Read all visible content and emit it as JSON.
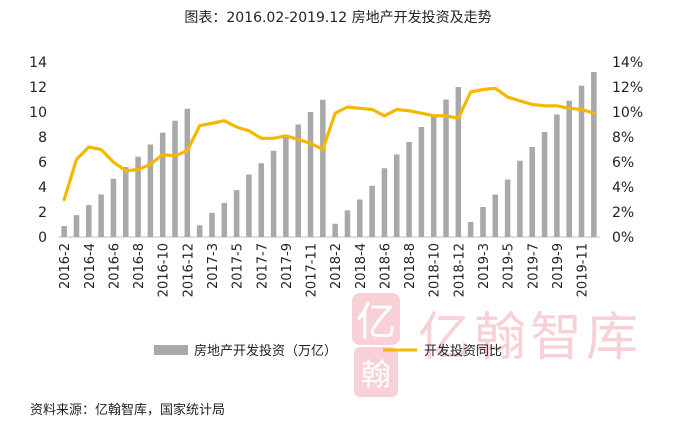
{
  "title": "图表：2016.02-2019.12 房地产开发投资及走势",
  "source": "资料来源：亿翰智库，国家统计局",
  "watermark": "亿翰智库",
  "colors": {
    "bar": "#a9a9a9",
    "line": "#f5b800",
    "watermark": "#f6c9cf"
  },
  "chart_data": {
    "type": "bar+line",
    "categories": [
      "2016-2",
      "2016-3",
      "2016-4",
      "2016-5",
      "2016-6",
      "2016-7",
      "2016-8",
      "2016-9",
      "2016-10",
      "2016-11",
      "2016-12",
      "2017-2",
      "2017-3",
      "2017-4",
      "2017-5",
      "2017-6",
      "2017-7",
      "2017-8",
      "2017-9",
      "2017-10",
      "2017-11",
      "2017-12",
      "2018-2",
      "2018-3",
      "2018-4",
      "2018-5",
      "2018-6",
      "2018-7",
      "2018-8",
      "2018-9",
      "2018-10",
      "2018-11",
      "2018-12",
      "2019-2",
      "2019-3",
      "2019-4",
      "2019-5",
      "2019-6",
      "2019-7",
      "2019-8",
      "2019-9",
      "2019-10",
      "2019-11",
      "2019-12"
    ],
    "tick_labels": [
      "2016-2",
      "2016-4",
      "2016-6",
      "2016-8",
      "2016-10",
      "2016-12",
      "2017-3",
      "2017-5",
      "2017-7",
      "2017-9",
      "2017-11",
      "2018-2",
      "2018-4",
      "2018-6",
      "2018-8",
      "2018-10",
      "2018-12",
      "2019-3",
      "2019-5",
      "2019-7",
      "2019-9",
      "2019-11"
    ],
    "series": [
      {
        "name": "房地产开发投资（万亿）",
        "type": "bar",
        "axis": "left",
        "values": [
          0.88,
          1.75,
          2.55,
          3.4,
          4.66,
          5.6,
          6.43,
          7.4,
          8.35,
          9.3,
          10.26,
          0.94,
          1.93,
          2.73,
          3.75,
          5.0,
          5.9,
          6.9,
          8.0,
          9.0,
          10.0,
          10.98,
          1.06,
          2.13,
          3.0,
          4.1,
          5.5,
          6.6,
          7.6,
          8.8,
          9.8,
          11.0,
          12.0,
          1.2,
          2.4,
          3.4,
          4.6,
          6.1,
          7.2,
          8.4,
          9.8,
          10.9,
          12.1,
          13.2
        ]
      },
      {
        "name": "开发投资同比",
        "type": "line",
        "axis": "right",
        "values": [
          3.0,
          6.2,
          7.2,
          7.0,
          6.0,
          5.3,
          5.4,
          5.8,
          6.6,
          6.5,
          6.9,
          8.9,
          9.1,
          9.3,
          8.8,
          8.5,
          7.9,
          7.9,
          8.1,
          7.8,
          7.5,
          7.0,
          9.9,
          10.4,
          10.3,
          10.2,
          9.7,
          10.2,
          10.1,
          9.9,
          9.7,
          9.7,
          9.5,
          11.6,
          11.8,
          11.9,
          11.2,
          10.9,
          10.6,
          10.5,
          10.5,
          10.3,
          10.2,
          9.9
        ]
      }
    ],
    "y_left": {
      "min": 0,
      "max": 14,
      "step": 2,
      "ticks": [
        "0",
        "2",
        "4",
        "6",
        "8",
        "10",
        "12",
        "14"
      ]
    },
    "y_right": {
      "min": 0,
      "max": 14,
      "step": 2,
      "ticks": [
        "0%",
        "2%",
        "4%",
        "6%",
        "8%",
        "10%",
        "12%",
        "14%"
      ]
    },
    "grid": false,
    "legend": {
      "position": "bottom",
      "items": [
        "房地产开发投资（万亿）",
        "开发投资同比"
      ]
    }
  }
}
